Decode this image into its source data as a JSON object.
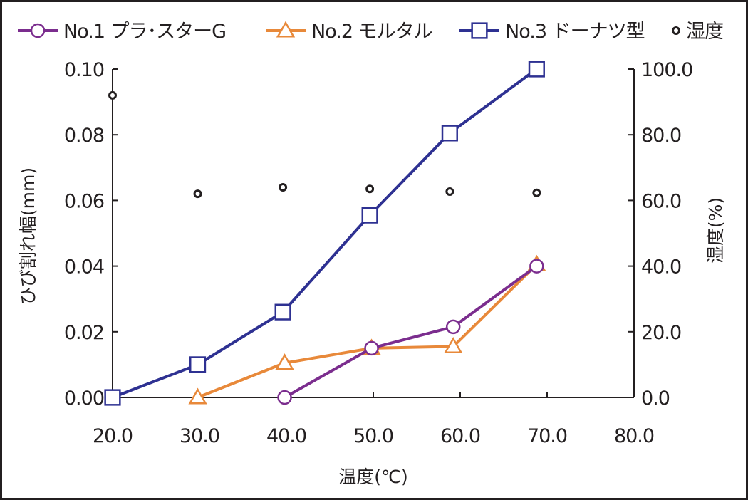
{
  "chart_data": {
    "type": "line",
    "title": "",
    "xlabel": "温度(℃)",
    "ylabel": "ひび割れ幅(mm)",
    "y2label": "湿度(%)",
    "xlim": [
      20,
      80
    ],
    "ylim": [
      0,
      0.1
    ],
    "y2lim": [
      0,
      100
    ],
    "x_ticks": [
      "20.0",
      "30.0",
      "40.0",
      "50.0",
      "60.0",
      "70.0",
      "80.0"
    ],
    "y_ticks": [
      "0.00",
      "0.02",
      "0.04",
      "0.06",
      "0.08",
      "0.10"
    ],
    "y2_ticks": [
      "0.0",
      "20.0",
      "40.0",
      "60.0",
      "80.0",
      "100.0"
    ],
    "grid": false,
    "legend_position": "top",
    "series": [
      {
        "name": "No.1 プラ･スターG",
        "marker": "circle",
        "color": "#7b2d8e",
        "axis": "left",
        "x": [
          39.8,
          49.8,
          59.2,
          68.8
        ],
        "y": [
          0.0,
          0.015,
          0.0215,
          0.04
        ]
      },
      {
        "name": "No.2 モルタル",
        "marker": "triangle",
        "color": "#e8893a",
        "axis": "left",
        "x": [
          29.8,
          39.8,
          49.8,
          59.2,
          68.8
        ],
        "y": [
          0.0,
          0.0105,
          0.015,
          0.0155,
          0.0405
        ]
      },
      {
        "name": "No.3 ドーナツ型",
        "marker": "square",
        "color": "#2e3192",
        "axis": "left",
        "x": [
          20.0,
          29.8,
          39.6,
          49.6,
          58.8,
          68.8
        ],
        "y": [
          0.0,
          0.01,
          0.026,
          0.0555,
          0.0805,
          0.1
        ]
      },
      {
        "name": "湿度",
        "marker": "dot",
        "color": "#231f20",
        "axis": "right",
        "x": [
          20.0,
          29.8,
          39.6,
          49.6,
          58.8,
          68.8
        ],
        "y": [
          92,
          62,
          64,
          63.5,
          62.7,
          62.3
        ]
      }
    ]
  }
}
